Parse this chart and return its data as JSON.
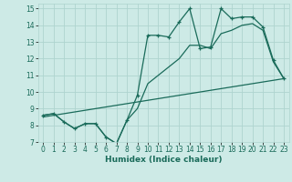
{
  "xlabel": "Humidex (Indice chaleur)",
  "bg_color": "#cdeae6",
  "grid_color": "#aed4cf",
  "line_color": "#1a6b5a",
  "xlim": [
    -0.5,
    23.5
  ],
  "ylim": [
    7,
    15.3
  ],
  "yticks": [
    7,
    8,
    9,
    10,
    11,
    12,
    13,
    14,
    15
  ],
  "xticks": [
    0,
    1,
    2,
    3,
    4,
    5,
    6,
    7,
    8,
    9,
    10,
    11,
    12,
    13,
    14,
    15,
    16,
    17,
    18,
    19,
    20,
    21,
    22,
    23
  ],
  "series1_x": [
    0,
    1,
    2,
    3,
    4,
    5,
    6,
    7,
    8,
    9,
    10,
    11,
    12,
    13,
    14,
    15,
    16,
    17,
    18,
    19,
    20,
    21,
    22,
    23
  ],
  "series1_y": [
    8.6,
    8.7,
    8.2,
    7.8,
    8.1,
    8.1,
    7.3,
    6.9,
    8.3,
    9.8,
    13.4,
    13.4,
    13.3,
    14.2,
    15.0,
    12.6,
    12.7,
    15.0,
    14.4,
    14.5,
    14.5,
    13.9,
    11.9,
    10.8
  ],
  "series2_x": [
    0,
    1,
    2,
    3,
    4,
    5,
    6,
    7,
    8,
    9,
    10,
    11,
    12,
    13,
    14,
    15,
    16,
    17,
    18,
    19,
    20,
    21,
    22,
    23
  ],
  "series2_y": [
    8.6,
    8.7,
    8.2,
    7.8,
    8.1,
    8.1,
    7.3,
    6.9,
    8.3,
    9.0,
    10.5,
    11.0,
    11.5,
    12.0,
    12.8,
    12.8,
    12.6,
    13.5,
    13.7,
    14.0,
    14.1,
    13.7,
    11.8,
    10.8
  ],
  "series3_x": [
    0,
    23
  ],
  "series3_y": [
    8.5,
    10.8
  ]
}
